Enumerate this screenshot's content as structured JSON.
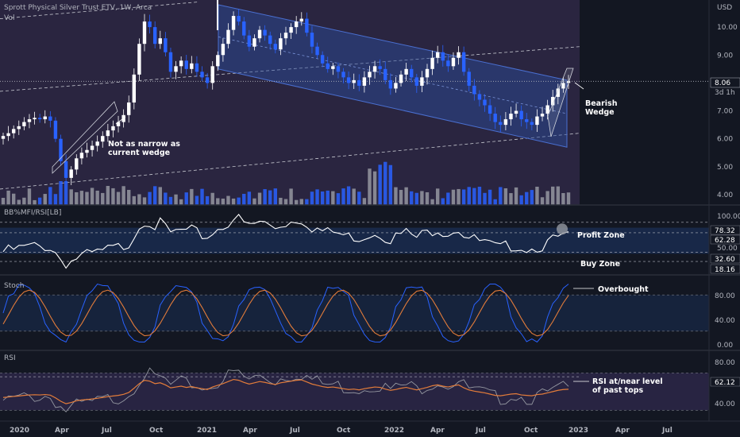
{
  "header": {
    "title": "Sprott Physical Silver Trust ETV, 1W, Arca",
    "vol_label": "Vol"
  },
  "main_axis": {
    "unit": "USD",
    "ticks": [
      "10.00",
      "9.00",
      "8.00",
      "7.00",
      "6.00",
      "5.00",
      "4.00"
    ]
  },
  "price_tag": {
    "value": "8.06",
    "countdown": "3d 1h"
  },
  "annotations": {
    "wedge_left": [
      "Not as narrow as",
      "current wedge"
    ],
    "wedge_right": [
      "Bearish",
      "Wedge"
    ],
    "profit_zone": "Profit Zone",
    "buy_zone": "Buy Zone",
    "overbought": "Overbought",
    "rsi_note": [
      "RSI at/near level",
      "of past tops"
    ]
  },
  "bbmfi": {
    "label": "BB%MFI/RSI[LB]",
    "ticks": [
      "100.00",
      "50.00"
    ],
    "tags": [
      {
        "value": "78.32",
        "color": "#131722",
        "text": "#ffffff"
      },
      {
        "value": "62.28",
        "color": "#131722",
        "text": "#ffffff"
      },
      {
        "value": "32.60",
        "color": "#131722",
        "text": "#ffffff"
      },
      {
        "value": "18.16",
        "color": "#131722",
        "text": "#ffffff"
      }
    ]
  },
  "stoch": {
    "label": "Stoch",
    "ticks": [
      "80.00",
      "40.00",
      "0.00"
    ]
  },
  "rsi": {
    "label": "RSI",
    "ticks": [
      "80.00",
      "40.00"
    ],
    "tag": "62.12"
  },
  "x_axis": [
    "2020",
    "Apr",
    "Jul",
    "Oct",
    "2021",
    "Apr",
    "Jul",
    "Oct",
    "2022",
    "Apr",
    "Jul",
    "Oct",
    "2023",
    "Apr",
    "Jul"
  ],
  "colors": {
    "up": "#ffffff",
    "down": "#2962ff",
    "channel": "#2f4fb8",
    "rsi_ma": "#e37c3a",
    "stoch_d": "#e37c3a",
    "stoch_k": "#2962ff",
    "bg": "#131722",
    "shade": "#3a2f5c"
  },
  "chart_data": {
    "type": "candlestick",
    "instrument": "Sprott Physical Silver Trust ETV",
    "interval": "1W",
    "y_unit": "USD",
    "ylim": [
      3.8,
      10.8
    ],
    "x_ticks": [
      "2020",
      "Apr",
      "Jul",
      "Oct",
      "2021",
      "Apr",
      "Jul",
      "Oct",
      "2022",
      "Apr",
      "Jul",
      "Oct",
      "2023",
      "Apr",
      "Jul"
    ],
    "close_path": [
      6.1,
      6.2,
      6.35,
      6.45,
      6.6,
      6.7,
      6.75,
      6.7,
      6.8,
      6.65,
      6.0,
      5.2,
      4.6,
      4.9,
      5.3,
      5.5,
      5.6,
      5.75,
      5.9,
      6.1,
      6.3,
      6.45,
      6.6,
      6.85,
      7.3,
      8.3,
      9.4,
      10.2,
      10.0,
      9.4,
      9.6,
      9.1,
      8.4,
      8.6,
      8.8,
      8.5,
      8.7,
      8.4,
      8.2,
      8.0,
      8.6,
      9.0,
      9.4,
      9.9,
      10.4,
      10.2,
      9.7,
      9.3,
      9.6,
      9.9,
      9.7,
      9.4,
      9.2,
      9.6,
      9.8,
      10.0,
      10.2,
      10.3,
      9.8,
      9.3,
      9.0,
      8.7,
      8.5,
      8.6,
      8.4,
      8.2,
      8.0,
      8.1,
      7.9,
      8.2,
      8.4,
      8.6,
      8.5,
      8.1,
      7.8,
      8.0,
      8.3,
      8.5,
      8.2,
      7.9,
      8.2,
      8.5,
      8.9,
      9.1,
      8.8,
      8.6,
      8.9,
      9.1,
      8.4,
      7.9,
      7.6,
      7.4,
      7.2,
      6.9,
      6.6,
      6.5,
      6.7,
      6.9,
      7.0,
      6.7,
      6.6,
      6.5,
      6.8,
      6.9,
      7.2,
      7.5,
      7.8,
      8.0,
      8.06
    ],
    "annotations": [
      "Not as narrow as current wedge",
      "Bearish Wedge",
      "Profit Zone",
      "Buy Zone",
      "Overbought",
      "RSI at/near level of past tops"
    ],
    "last_value": 8.06,
    "panes": [
      {
        "name": "BB%MFI/RSI[LB]",
        "levels": [
          78.32,
          62.28,
          32.6,
          18.16
        ],
        "ylim": [
          0,
          100
        ]
      },
      {
        "name": "Stoch",
        "ylim": [
          0,
          100
        ],
        "levels": [
          80,
          20
        ]
      },
      {
        "name": "RSI",
        "ylim": [
          20,
          90
        ],
        "last": 62.12,
        "levels": [
          70,
          30
        ]
      }
    ]
  }
}
